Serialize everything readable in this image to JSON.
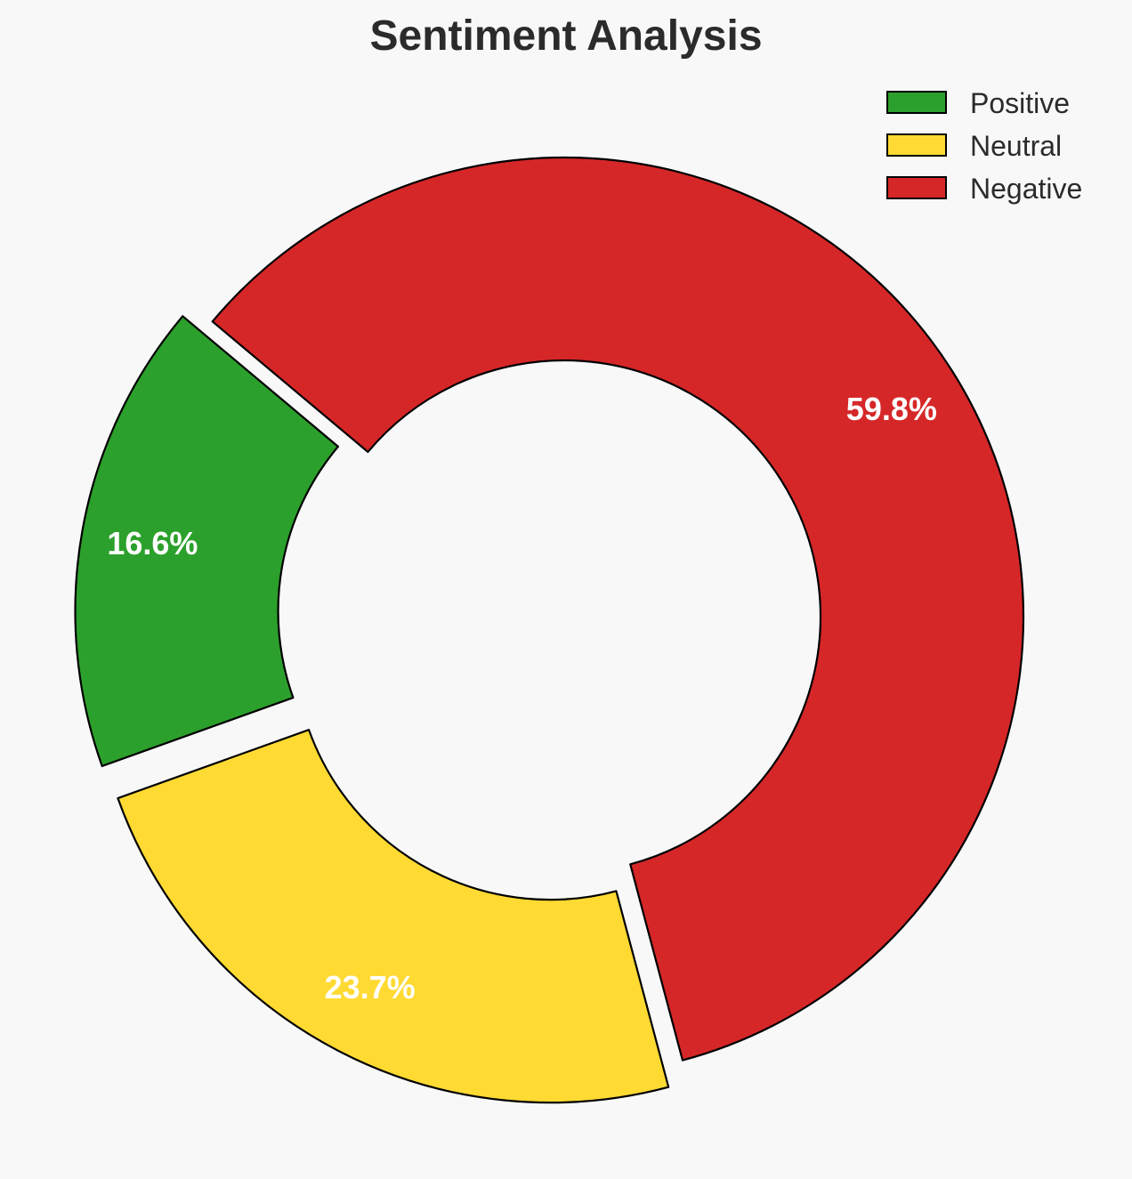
{
  "chart_data": {
    "type": "pie",
    "variant": "donut",
    "title": "Sentiment Analysis",
    "categories": [
      "Positive",
      "Neutral",
      "Negative"
    ],
    "values": [
      16.6,
      23.7,
      59.8
    ],
    "value_labels": [
      "16.6%",
      "23.7%",
      "59.8%"
    ],
    "colors": [
      "#2ca02c",
      "#ffda33",
      "#d62728"
    ],
    "exploded": [
      true,
      true,
      false
    ],
    "legend": {
      "position": "top-right",
      "entries": [
        "Positive",
        "Neutral",
        "Negative"
      ]
    },
    "start_angle_deg": 140,
    "direction": "counterclockwise"
  }
}
